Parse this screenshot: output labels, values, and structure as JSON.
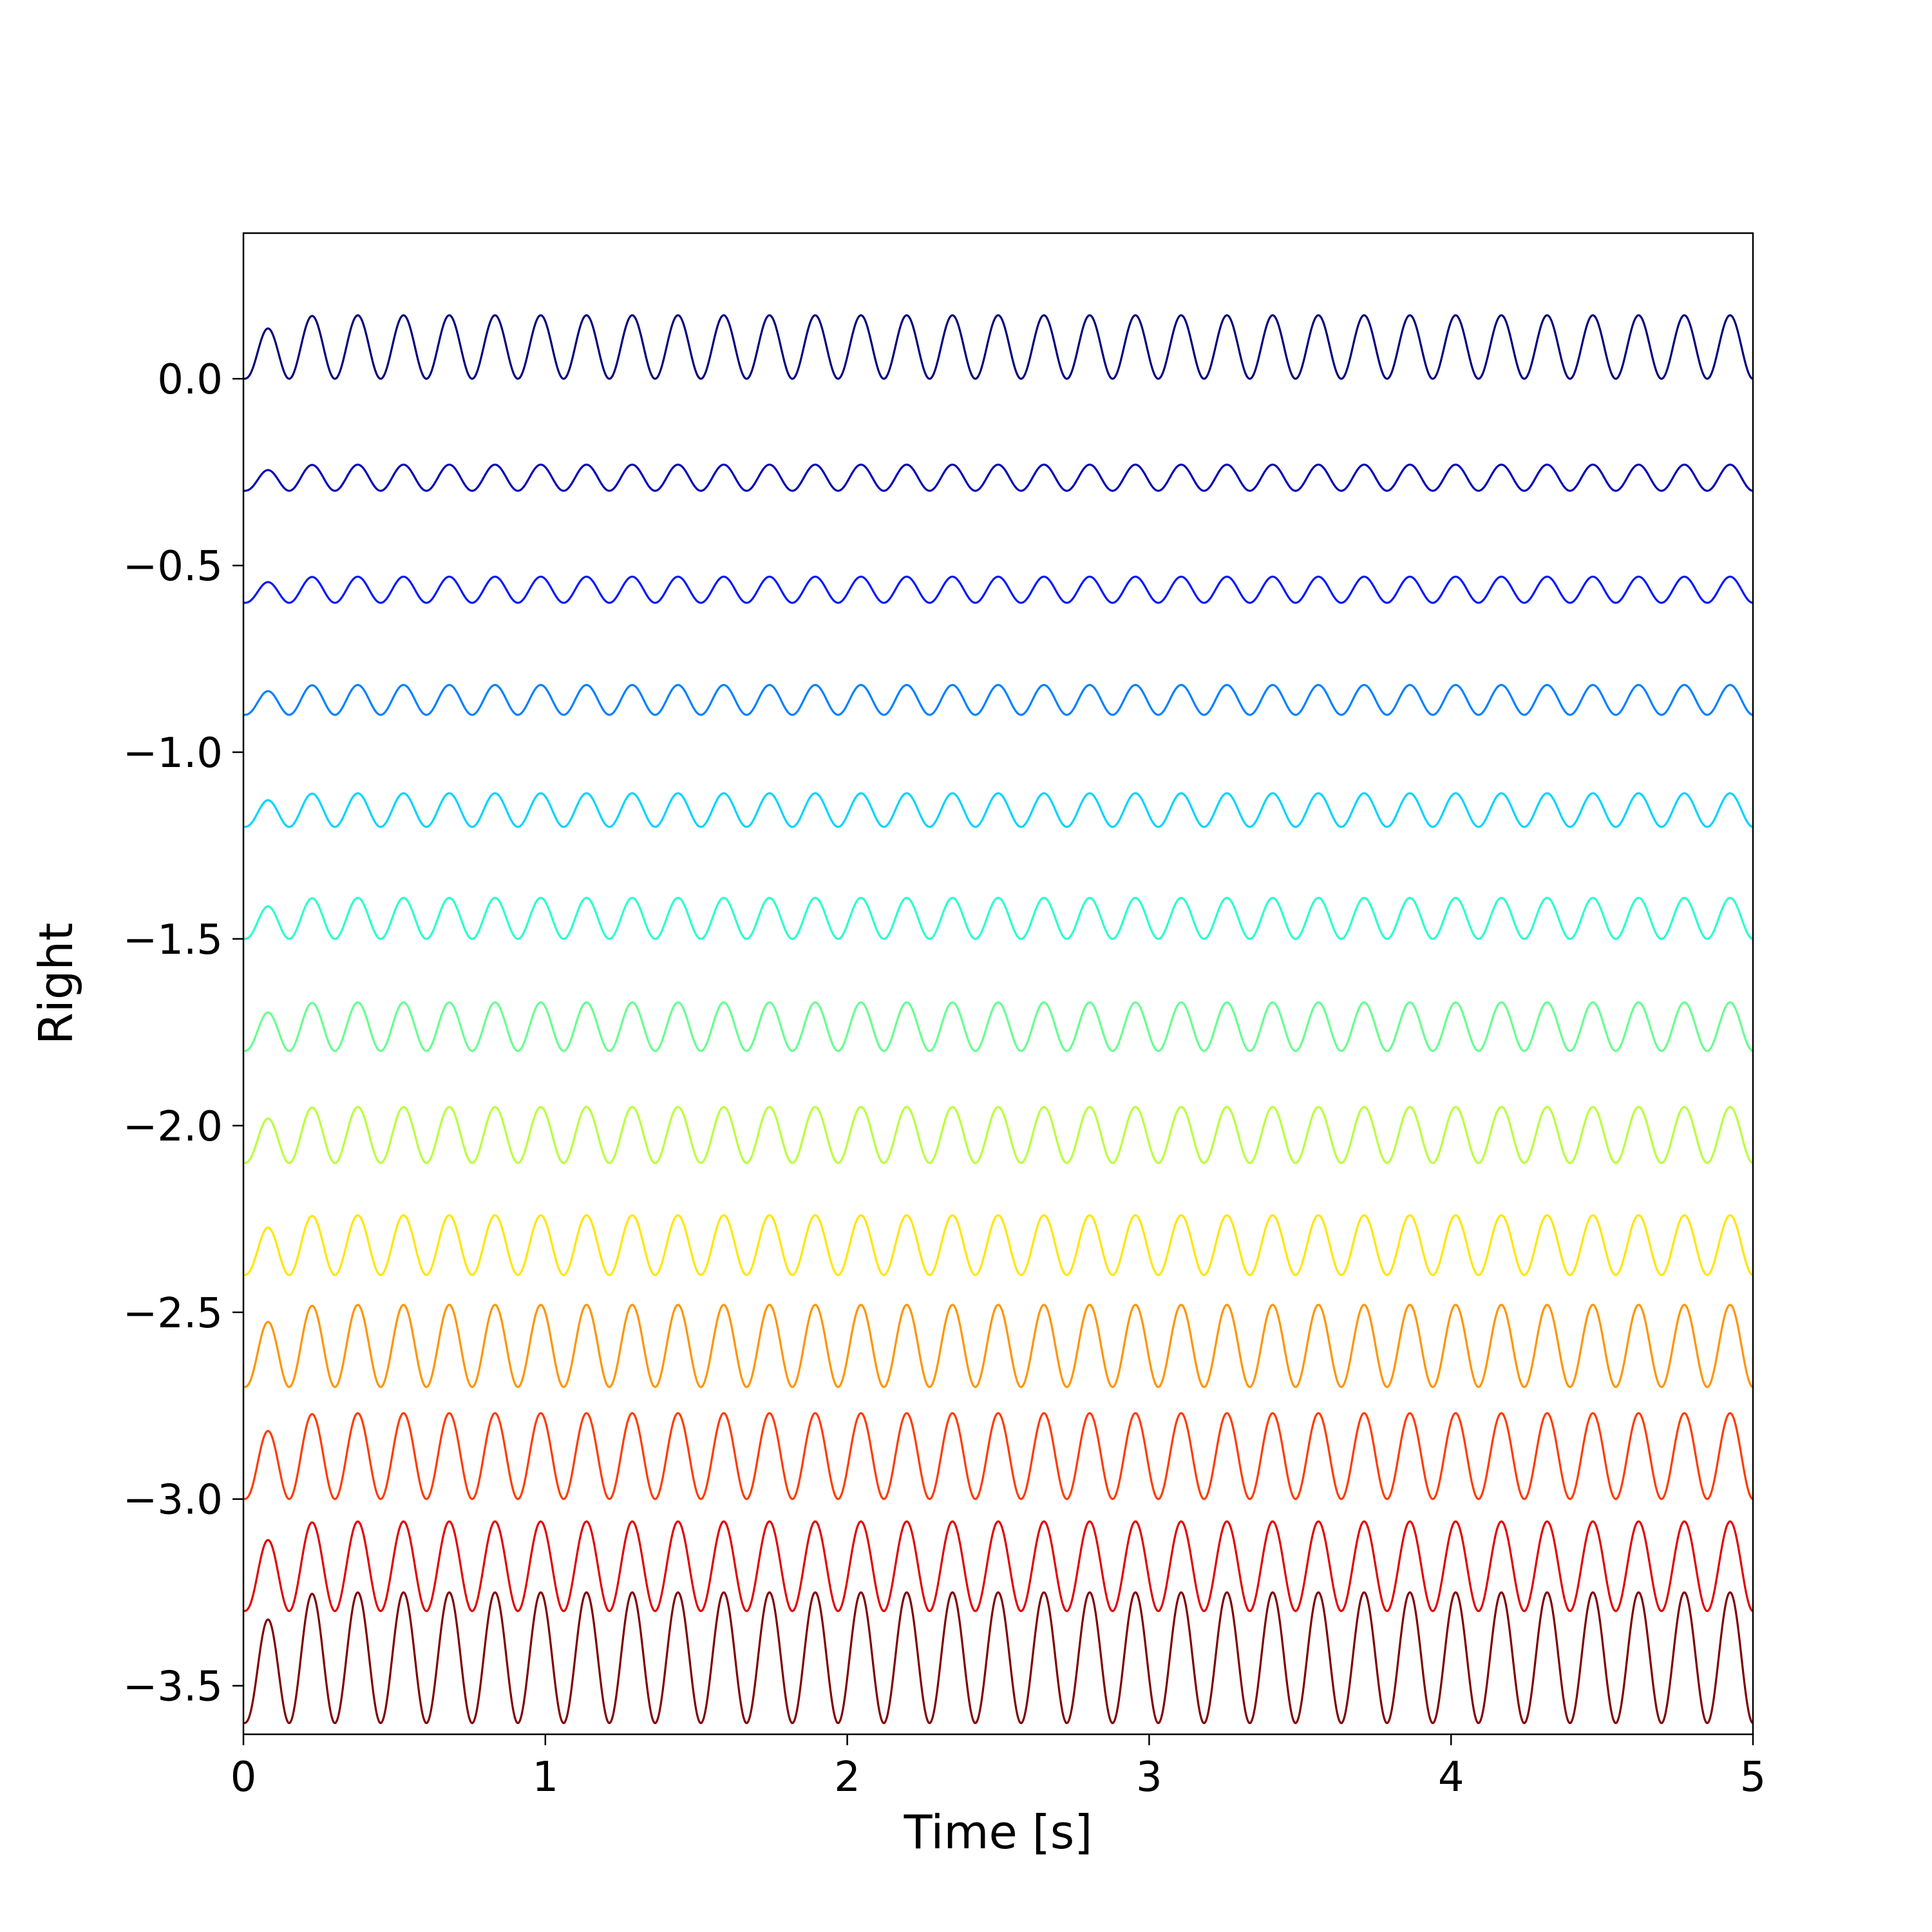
{
  "chart_data": {
    "type": "line",
    "title": "",
    "xlabel": "Time [s]",
    "ylabel": "Right",
    "xlim": [
      0,
      5
    ],
    "ylim": [
      -3.63,
      0.39
    ],
    "grid": false,
    "legend": "none",
    "xticks": [
      {
        "value": 0,
        "label": "0"
      },
      {
        "value": 1,
        "label": "1"
      },
      {
        "value": 2,
        "label": "2"
      },
      {
        "value": 3,
        "label": "3"
      },
      {
        "value": 4,
        "label": "4"
      },
      {
        "value": 5,
        "label": "5"
      }
    ],
    "yticks": [
      {
        "value": 0.0,
        "label": "0.0"
      },
      {
        "value": -0.5,
        "label": "−0.5"
      },
      {
        "value": -1.0,
        "label": "−1.0"
      },
      {
        "value": -1.5,
        "label": "−1.5"
      },
      {
        "value": -2.0,
        "label": "−2.0"
      },
      {
        "value": -2.5,
        "label": "−2.5"
      },
      {
        "value": -3.0,
        "label": "−3.0"
      },
      {
        "value": -3.5,
        "label": "−3.5"
      }
    ],
    "frequency_hz": 6.6,
    "series": [
      {
        "offset": 0.0,
        "amplitude": 0.17,
        "color": "#000080"
      },
      {
        "offset": -0.3,
        "amplitude": 0.07,
        "color": "#0000b8"
      },
      {
        "offset": -0.6,
        "amplitude": 0.07,
        "color": "#0018ff"
      },
      {
        "offset": -0.9,
        "amplitude": 0.08,
        "color": "#0080ff"
      },
      {
        "offset": -1.2,
        "amplitude": 0.09,
        "color": "#00d4ff"
      },
      {
        "offset": -1.5,
        "amplitude": 0.11,
        "color": "#29ffce"
      },
      {
        "offset": -1.8,
        "amplitude": 0.13,
        "color": "#66ff90"
      },
      {
        "offset": -2.1,
        "amplitude": 0.15,
        "color": "#b8ff3d"
      },
      {
        "offset": -2.4,
        "amplitude": 0.16,
        "color": "#ffe600"
      },
      {
        "offset": -2.7,
        "amplitude": 0.22,
        "color": "#ff9400"
      },
      {
        "offset": -3.0,
        "amplitude": 0.23,
        "color": "#ff3b00"
      },
      {
        "offset": -3.3,
        "amplitude": 0.24,
        "color": "#e30000"
      },
      {
        "offset": -3.6,
        "amplitude": 0.35,
        "color": "#800000"
      }
    ]
  }
}
